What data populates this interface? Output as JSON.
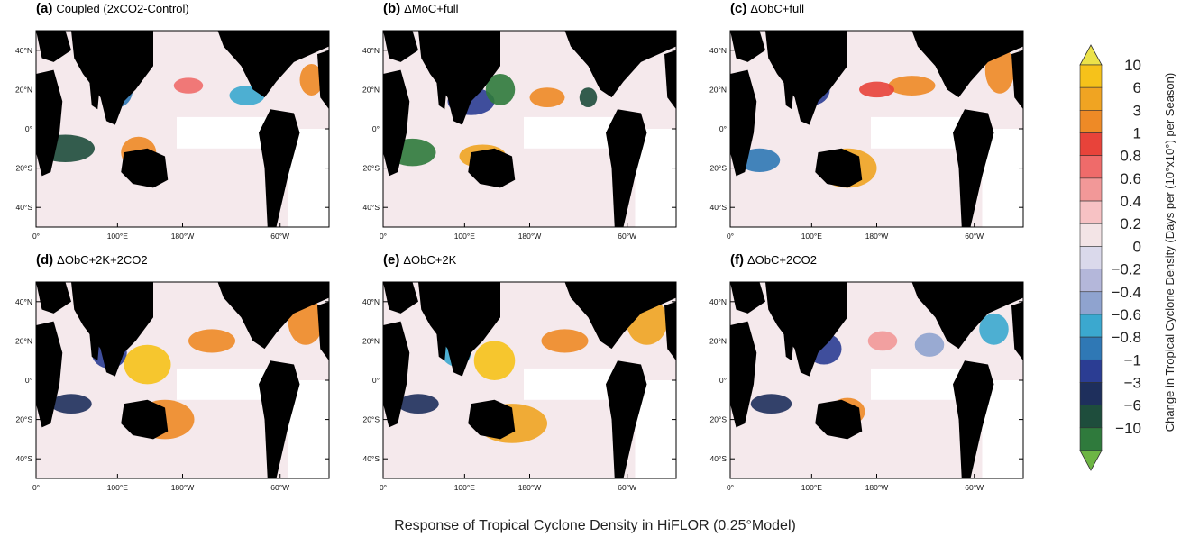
{
  "figure": {
    "title": "Response of Tropical Cyclone Density in HiFLOR (0.25°Model)",
    "colorbar_label": "Change in Tropical Cyclone Density (Days per (10°x10°) per Season)"
  },
  "chart_data": {
    "type": "heatmap",
    "panels": [
      {
        "tag": "(a)",
        "name": "Coupled (2xCO2-Control)"
      },
      {
        "tag": "(b)",
        "name": "ΔMoC+full"
      },
      {
        "tag": "(c)",
        "name": "ΔObC+full"
      },
      {
        "tag": "(d)",
        "name": "ΔObC+2K+2CO2"
      },
      {
        "tag": "(e)",
        "name": "ΔObC+2K"
      },
      {
        "tag": "(f)",
        "name": "ΔObC+2CO2"
      }
    ],
    "x_ticks": [
      "0°",
      "100°E",
      "180°W",
      "60°W"
    ],
    "y_ticks": [
      "40°N",
      "20°N",
      "0°",
      "20°S",
      "40°S"
    ],
    "xlim": [
      0,
      360
    ],
    "ylim": [
      -50,
      50
    ],
    "colorbar": {
      "levels": [
        "10",
        "6",
        "3",
        "1",
        "0.8",
        "0.6",
        "0.4",
        "0.2",
        "0",
        "−0.2",
        "−0.4",
        "−0.6",
        "−0.8",
        "−1",
        "−3",
        "−6",
        "−10"
      ],
      "colors": [
        "#ece24a",
        "#f6c21a",
        "#f0a422",
        "#ee8a26",
        "#e8433a",
        "#ef6b6a",
        "#f29898",
        "#f7c2c4",
        "#f3e4e6",
        "#dad9eb",
        "#b4b7da",
        "#8fa3cf",
        "#3ba8cf",
        "#2f78b5",
        "#2b3d93",
        "#1e2f5c",
        "#1e4d3c",
        "#2f7a3c",
        "#6db544"
      ]
    }
  }
}
